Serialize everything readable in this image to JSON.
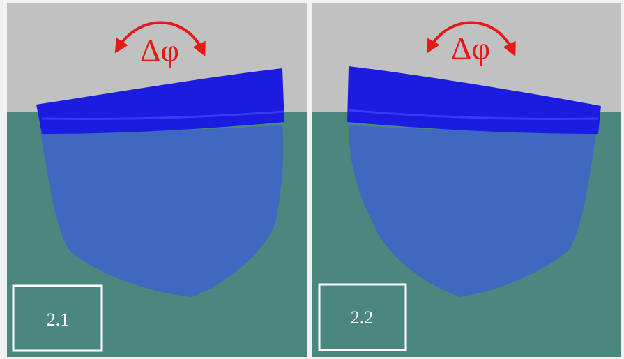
{
  "panels": [
    {
      "annotation": "Δφ",
      "label": "2.1"
    },
    {
      "annotation": "Δφ",
      "label": "2.2"
    }
  ]
}
